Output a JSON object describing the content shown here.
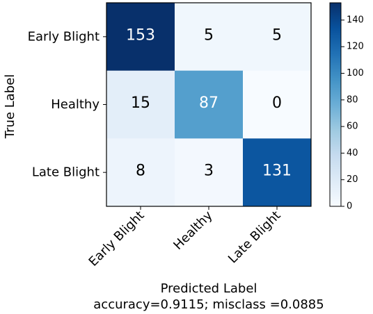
{
  "chart_data": {
    "type": "heatmap",
    "title": "",
    "xlabel": "Predicted Label",
    "ylabel": "True Label",
    "footer": "accuracy=0.9115; misclass =0.0885",
    "x_categories": [
      "Early Blight",
      "Healthy",
      "Late Blight"
    ],
    "y_categories": [
      "Early Blight",
      "Healthy",
      "Late Blight"
    ],
    "values": [
      [
        153,
        5,
        5
      ],
      [
        15,
        87,
        0
      ],
      [
        8,
        3,
        131
      ]
    ],
    "colormap": "Blues",
    "vmin": 0,
    "vmax": 153,
    "colorbar_ticks": [
      0,
      20,
      40,
      60,
      80,
      100,
      120,
      140
    ],
    "grid": false
  }
}
